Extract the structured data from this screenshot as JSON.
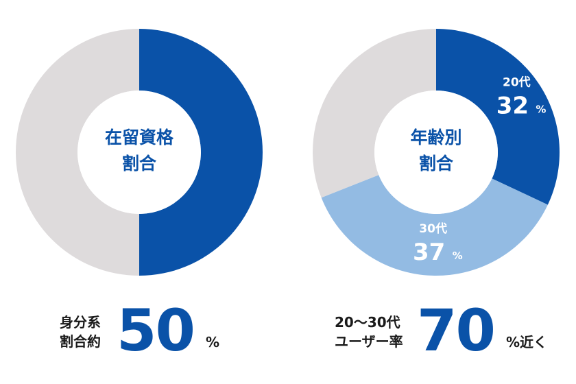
{
  "colors": {
    "dark_blue": "#0a52a8",
    "light_blue": "#93bbe3",
    "gray": "#dedbdc",
    "text": "#1a1a1a",
    "white": "#ffffff"
  },
  "chart_data": [
    {
      "type": "pie",
      "variant": "donut",
      "title_lines": [
        "在留資格",
        "割合"
      ],
      "slices": [
        {
          "name": "身分系",
          "value": 50,
          "color": "#0a52a8",
          "label": null,
          "value_label": null
        },
        {
          "name": "",
          "value": 50,
          "color": "#dedbdc",
          "label": null,
          "value_label": null
        }
      ]
    },
    {
      "type": "pie",
      "variant": "donut",
      "title_lines": [
        "年齢別",
        "割合"
      ],
      "slices": [
        {
          "name": "20代",
          "value": 32,
          "color": "#0a52a8",
          "label": "20代",
          "value_label": "32",
          "unit": "%"
        },
        {
          "name": "30代",
          "value": 37,
          "color": "#93bbe3",
          "label": "30代",
          "value_label": "37",
          "unit": "%"
        },
        {
          "name": "",
          "value": 31,
          "color": "#dedbdc",
          "label": null,
          "value_label": null
        }
      ]
    }
  ],
  "stats": {
    "left": {
      "label_lines": [
        "身分系",
        "割合約"
      ],
      "value": "50",
      "unit": "%"
    },
    "right": {
      "label_lines": [
        "20〜30代",
        "ユーザー率"
      ],
      "value": "70",
      "unit": "%近く"
    }
  }
}
